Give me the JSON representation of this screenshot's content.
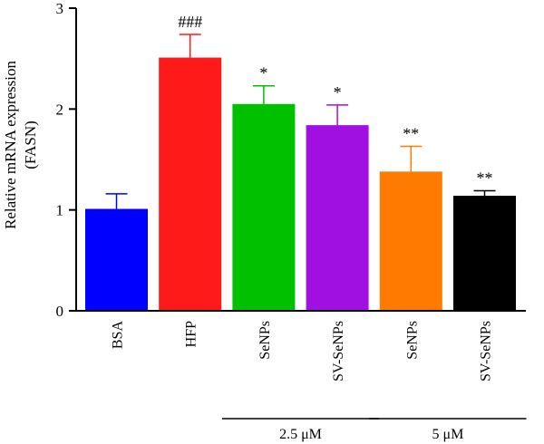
{
  "chart_data": {
    "type": "bar",
    "categories": [
      "BSA",
      "HFP",
      "SeNPs",
      "SV-SeNPs",
      "SeNPs",
      "SV-SeNPs"
    ],
    "series": [
      {
        "values": [
          1.01,
          2.51,
          2.05,
          1.84,
          1.38,
          1.14
        ],
        "errors": [
          0.15,
          0.23,
          0.18,
          0.2,
          0.25,
          0.05
        ],
        "colors": [
          "#0000ff",
          "#ff1a1a",
          "#00c000",
          "#a010e0",
          "#ff7a00",
          "#000000"
        ]
      }
    ],
    "significance": [
      "",
      "###",
      "*",
      "*",
      "**",
      "**"
    ],
    "ylabel": [
      "Relative mRNA expression",
      "(FASN)"
    ],
    "ylim": [
      0,
      3
    ],
    "yticks": [
      "0",
      "1",
      "2",
      "3"
    ],
    "groups": [
      {
        "label": "2.5 μM",
        "categories": [
          2,
          3
        ]
      },
      {
        "label": "5 μM",
        "categories": [
          4,
          5
        ]
      }
    ],
    "grid": false
  }
}
